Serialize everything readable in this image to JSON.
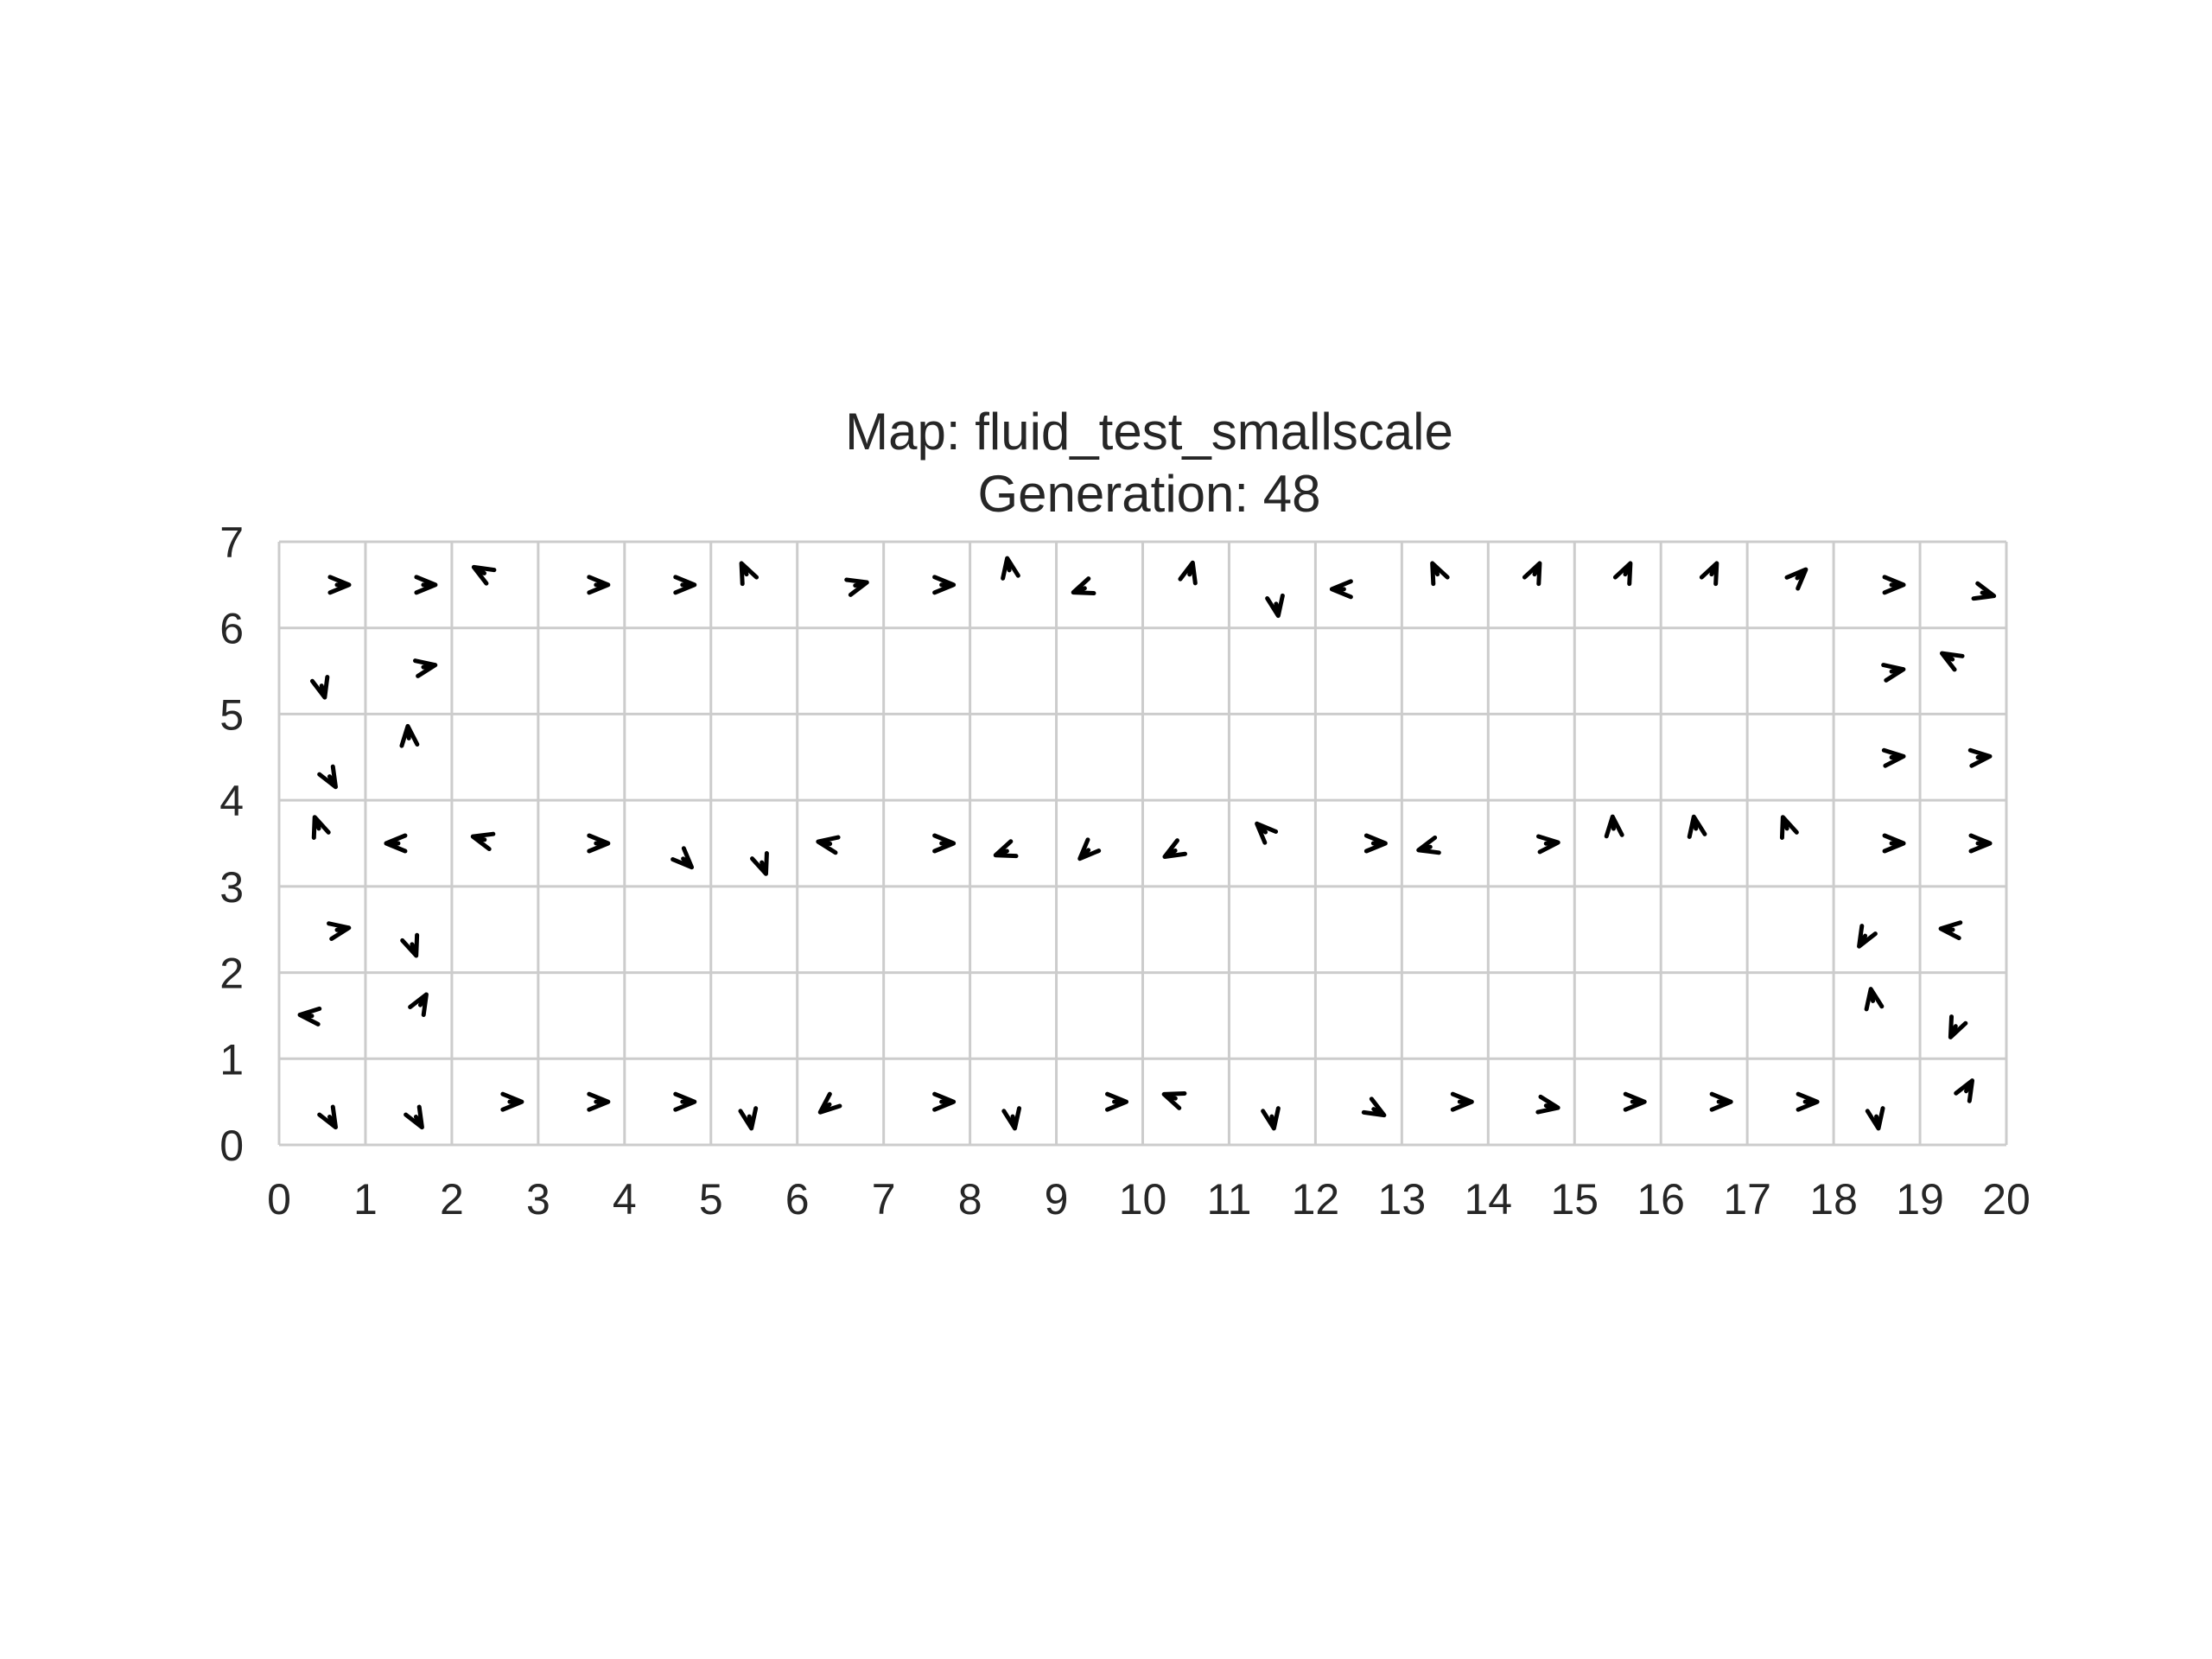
{
  "chart_data": {
    "type": "quiver",
    "title_lines": [
      "Map: fluid_test_smallscale",
      "Generation: 48"
    ],
    "xlim": [
      0,
      20
    ],
    "ylim": [
      0,
      7
    ],
    "x_ticks": [
      "0",
      "1",
      "2",
      "3",
      "4",
      "5",
      "6",
      "7",
      "8",
      "9",
      "10",
      "11",
      "12",
      "13",
      "14",
      "15",
      "16",
      "17",
      "18",
      "19",
      "20"
    ],
    "y_ticks": [
      "0",
      "1",
      "2",
      "3",
      "4",
      "5",
      "6",
      "7"
    ],
    "grid": true,
    "arrow_color": "#000000",
    "grid_color": "#cccccc",
    "arrows": [
      {
        "x": 0.7,
        "y": 6.5,
        "angle": 0
      },
      {
        "x": 1.7,
        "y": 6.5,
        "angle": 0
      },
      {
        "x": 2.35,
        "y": 6.65,
        "angle": 150
      },
      {
        "x": 3.7,
        "y": 6.5,
        "angle": 0
      },
      {
        "x": 4.7,
        "y": 6.5,
        "angle": 0
      },
      {
        "x": 5.4,
        "y": 6.65,
        "angle": 115
      },
      {
        "x": 6.7,
        "y": 6.5,
        "angle": 15
      },
      {
        "x": 7.7,
        "y": 6.5,
        "angle": 0
      },
      {
        "x": 8.45,
        "y": 6.7,
        "angle": 100
      },
      {
        "x": 9.3,
        "y": 6.45,
        "angle": 200
      },
      {
        "x": 10.55,
        "y": 6.65,
        "angle": 75
      },
      {
        "x": 11.55,
        "y": 6.25,
        "angle": -80
      },
      {
        "x": 12.3,
        "y": 6.45,
        "angle": 180
      },
      {
        "x": 13.4,
        "y": 6.65,
        "angle": 115
      },
      {
        "x": 14.55,
        "y": 6.65,
        "angle": 65
      },
      {
        "x": 15.6,
        "y": 6.65,
        "angle": 65
      },
      {
        "x": 16.6,
        "y": 6.65,
        "angle": 65
      },
      {
        "x": 17.6,
        "y": 6.6,
        "angle": 45
      },
      {
        "x": 18.7,
        "y": 6.5,
        "angle": 0
      },
      {
        "x": 19.75,
        "y": 6.4,
        "angle": -15
      },
      {
        "x": 0.5,
        "y": 5.3,
        "angle": -75
      },
      {
        "x": 1.7,
        "y": 5.55,
        "angle": 10
      },
      {
        "x": 18.7,
        "y": 5.5,
        "angle": 10
      },
      {
        "x": 19.35,
        "y": 5.65,
        "angle": 150
      },
      {
        "x": 0.6,
        "y": 4.25,
        "angle": -60
      },
      {
        "x": 1.5,
        "y": 4.75,
        "angle": 95
      },
      {
        "x": 18.7,
        "y": 4.5,
        "angle": 5
      },
      {
        "x": 19.7,
        "y": 4.5,
        "angle": 5
      },
      {
        "x": 0.45,
        "y": 3.7,
        "angle": 110
      },
      {
        "x": 1.35,
        "y": 3.5,
        "angle": 180
      },
      {
        "x": 2.35,
        "y": 3.55,
        "angle": 165
      },
      {
        "x": 3.7,
        "y": 3.5,
        "angle": 0
      },
      {
        "x": 4.7,
        "y": 3.3,
        "angle": -45
      },
      {
        "x": 5.6,
        "y": 3.25,
        "angle": -70
      },
      {
        "x": 6.35,
        "y": 3.5,
        "angle": 170
      },
      {
        "x": 7.7,
        "y": 3.5,
        "angle": 0
      },
      {
        "x": 8.4,
        "y": 3.4,
        "angle": -160
      },
      {
        "x": 9.35,
        "y": 3.4,
        "angle": -135
      },
      {
        "x": 10.35,
        "y": 3.4,
        "angle": -150
      },
      {
        "x": 11.4,
        "y": 3.65,
        "angle": 135
      },
      {
        "x": 12.7,
        "y": 3.5,
        "angle": 0
      },
      {
        "x": 13.3,
        "y": 3.45,
        "angle": -165
      },
      {
        "x": 14.7,
        "y": 3.5,
        "angle": 5
      },
      {
        "x": 15.45,
        "y": 3.7,
        "angle": 95
      },
      {
        "x": 16.4,
        "y": 3.7,
        "angle": 100
      },
      {
        "x": 17.45,
        "y": 3.7,
        "angle": 110
      },
      {
        "x": 18.7,
        "y": 3.5,
        "angle": 0
      },
      {
        "x": 19.7,
        "y": 3.5,
        "angle": 0
      },
      {
        "x": 0.7,
        "y": 2.5,
        "angle": 10
      },
      {
        "x": 1.55,
        "y": 2.3,
        "angle": -70
      },
      {
        "x": 18.35,
        "y": 2.4,
        "angle": -120
      },
      {
        "x": 19.35,
        "y": 2.5,
        "angle": 175
      },
      {
        "x": 0.35,
        "y": 1.5,
        "angle": 175
      },
      {
        "x": 1.65,
        "y": 1.65,
        "angle": 60
      },
      {
        "x": 18.45,
        "y": 1.7,
        "angle": 100
      },
      {
        "x": 19.4,
        "y": 1.35,
        "angle": -115
      },
      {
        "x": 0.6,
        "y": 0.3,
        "angle": -60
      },
      {
        "x": 1.6,
        "y": 0.3,
        "angle": -60
      },
      {
        "x": 2.7,
        "y": 0.5,
        "angle": 0
      },
      {
        "x": 3.7,
        "y": 0.5,
        "angle": 0
      },
      {
        "x": 4.7,
        "y": 0.5,
        "angle": 0
      },
      {
        "x": 5.45,
        "y": 0.3,
        "angle": -80
      },
      {
        "x": 6.35,
        "y": 0.45,
        "angle": -140
      },
      {
        "x": 7.7,
        "y": 0.5,
        "angle": 0
      },
      {
        "x": 8.5,
        "y": 0.3,
        "angle": -80
      },
      {
        "x": 9.7,
        "y": 0.5,
        "angle": 0
      },
      {
        "x": 10.35,
        "y": 0.55,
        "angle": 160
      },
      {
        "x": 11.5,
        "y": 0.3,
        "angle": -80
      },
      {
        "x": 12.7,
        "y": 0.4,
        "angle": -30
      },
      {
        "x": 13.7,
        "y": 0.5,
        "angle": 0
      },
      {
        "x": 14.7,
        "y": 0.45,
        "angle": -10
      },
      {
        "x": 15.7,
        "y": 0.5,
        "angle": 0
      },
      {
        "x": 16.7,
        "y": 0.5,
        "angle": 0
      },
      {
        "x": 17.7,
        "y": 0.5,
        "angle": 0
      },
      {
        "x": 18.5,
        "y": 0.3,
        "angle": -80
      },
      {
        "x": 19.55,
        "y": 0.65,
        "angle": 60
      }
    ]
  }
}
